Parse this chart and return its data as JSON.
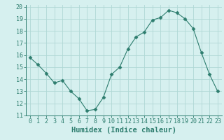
{
  "x": [
    0,
    1,
    2,
    3,
    4,
    5,
    6,
    7,
    8,
    9,
    10,
    11,
    12,
    13,
    14,
    15,
    16,
    17,
    18,
    19,
    20,
    21,
    22,
    23
  ],
  "y": [
    15.8,
    15.2,
    14.5,
    13.7,
    13.9,
    13.0,
    12.4,
    11.4,
    11.5,
    12.5,
    14.4,
    15.0,
    16.5,
    17.5,
    17.9,
    18.9,
    19.1,
    19.7,
    19.5,
    19.0,
    18.2,
    16.2,
    14.4,
    13.0
  ],
  "xlabel": "Humidex (Indice chaleur)",
  "ylim": [
    11,
    20
  ],
  "xlim_min": -0.5,
  "xlim_max": 23.5,
  "yticks": [
    11,
    12,
    13,
    14,
    15,
    16,
    17,
    18,
    19,
    20
  ],
  "xticks": [
    0,
    1,
    2,
    3,
    4,
    5,
    6,
    7,
    8,
    9,
    10,
    11,
    12,
    13,
    14,
    15,
    16,
    17,
    18,
    19,
    20,
    21,
    22,
    23
  ],
  "line_color": "#2d7d6e",
  "marker": "D",
  "marker_size": 2.5,
  "bg_color": "#d6f0ef",
  "grid_color": "#b0d8d5",
  "tick_label_fontsize": 6,
  "xlabel_fontsize": 7.5
}
